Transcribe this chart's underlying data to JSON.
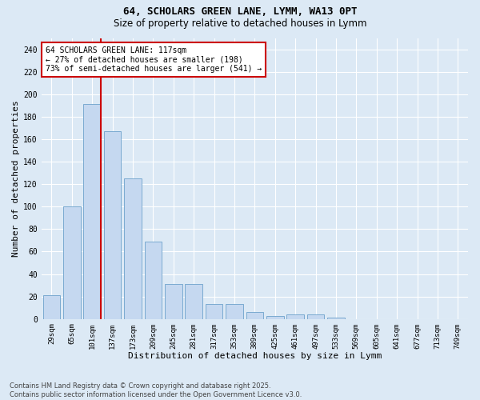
{
  "title1": "64, SCHOLARS GREEN LANE, LYMM, WA13 0PT",
  "title2": "Size of property relative to detached houses in Lymm",
  "xlabel": "Distribution of detached houses by size in Lymm",
  "ylabel": "Number of detached properties",
  "categories": [
    "29sqm",
    "65sqm",
    "101sqm",
    "137sqm",
    "173sqm",
    "209sqm",
    "245sqm",
    "281sqm",
    "317sqm",
    "353sqm",
    "389sqm",
    "425sqm",
    "461sqm",
    "497sqm",
    "533sqm",
    "569sqm",
    "605sqm",
    "641sqm",
    "677sqm",
    "713sqm",
    "749sqm"
  ],
  "values": [
    21,
    100,
    191,
    167,
    125,
    69,
    31,
    31,
    13,
    13,
    6,
    3,
    4,
    4,
    1,
    0,
    0,
    0,
    0,
    0,
    0
  ],
  "bar_color": "#c5d8f0",
  "bar_edge_color": "#7aaad0",
  "background_color": "#dce9f5",
  "plot_bg_color": "#dce9f5",
  "grid_color": "#ffffff",
  "annotation_box_color": "#cc0000",
  "property_line_color": "#cc0000",
  "property_index": 2,
  "annotation_line1": "64 SCHOLARS GREEN LANE: 117sqm",
  "annotation_line2": "← 27% of detached houses are smaller (198)",
  "annotation_line3": "73% of semi-detached houses are larger (541) →",
  "ylim": [
    0,
    250
  ],
  "yticks": [
    0,
    20,
    40,
    60,
    80,
    100,
    120,
    140,
    160,
    180,
    200,
    220,
    240
  ],
  "footer1": "Contains HM Land Registry data © Crown copyright and database right 2025.",
  "footer2": "Contains public sector information licensed under the Open Government Licence v3.0."
}
